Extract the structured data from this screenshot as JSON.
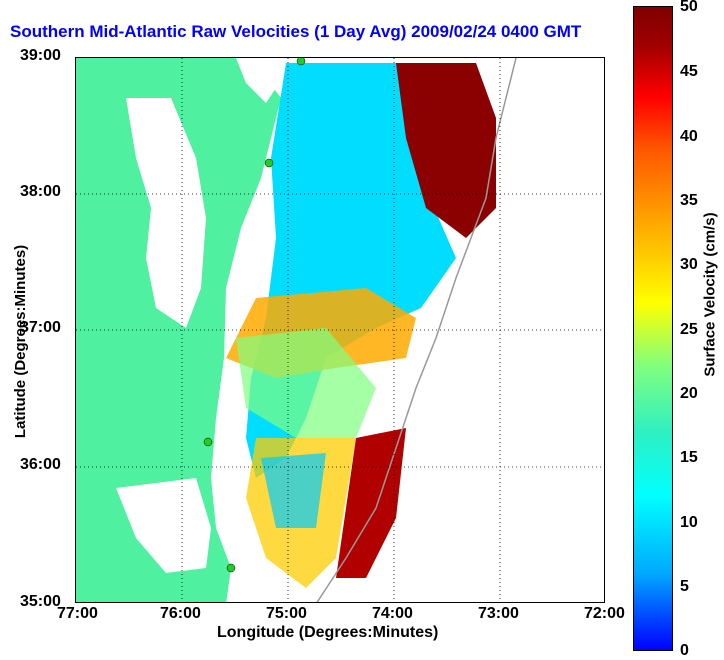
{
  "title": "Southern Mid-Atlantic Raw Velocities (1 Day Avg) 2009/02/24 0400 GMT",
  "axes": {
    "x_label": "Longitude (Degrees:Minutes)",
    "y_label": "Latitude (Degrees:Minutes)",
    "x_ticks": [
      "77:00",
      "76:00",
      "75:00",
      "74:00",
      "73:00",
      "72:00"
    ],
    "y_ticks": [
      "39:00",
      "38:00",
      "37:00",
      "36:00",
      "35:00"
    ]
  },
  "colorbar": {
    "label": "Surface Velocity (cm/s)",
    "ticks": [
      "0",
      "5",
      "10",
      "15",
      "20",
      "25",
      "30",
      "35",
      "40",
      "45",
      "50"
    ],
    "range": [
      0,
      50
    ]
  },
  "colors": {
    "land": "#4ff0a0",
    "water": "#ffffff",
    "title": "#0000ff",
    "station": "#22cc22",
    "coast": "#555555"
  }
}
